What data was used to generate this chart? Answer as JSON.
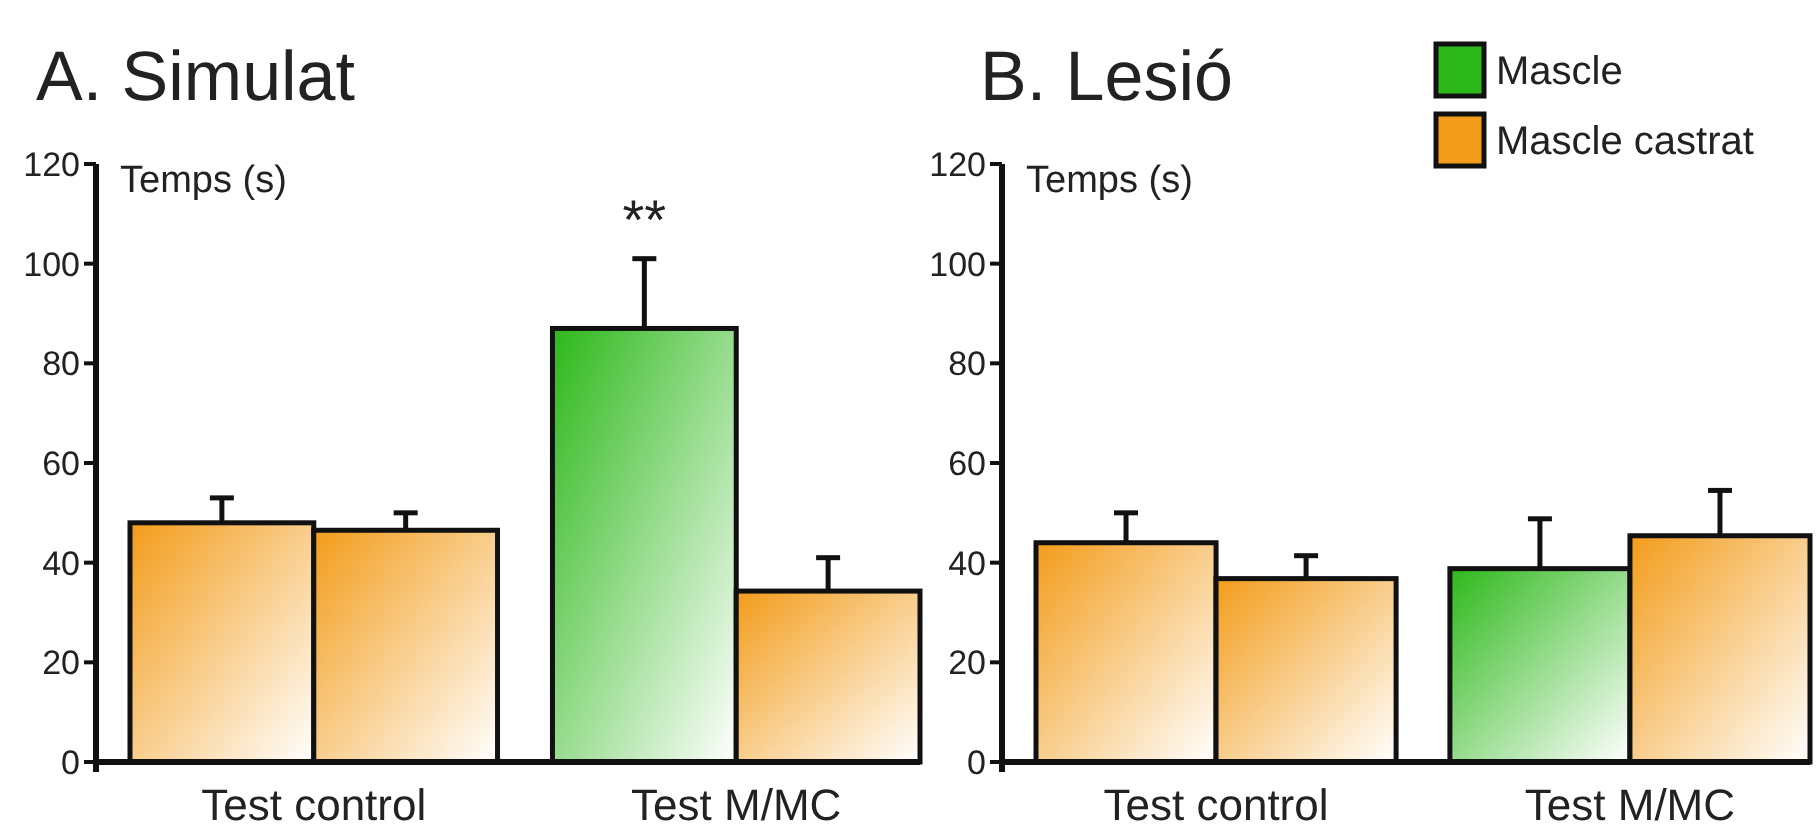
{
  "chart_data": [
    {
      "type": "bar",
      "title": "A. Simulat",
      "ylabel": "Temps (s)",
      "categories": [
        "Test control",
        "Test M/MC"
      ],
      "series": [
        {
          "color": "#2db81a",
          "colors": [
            "#f39c1a",
            "#2db81a"
          ],
          "values": [
            48,
            87
          ],
          "errors": [
            [
              48,
              53
            ],
            [
              87,
              101
            ]
          ]
        },
        {
          "color": "#f39c1a",
          "colors": [
            "#f39c1a",
            "#f39c1a"
          ],
          "values": [
            46.5,
            34.3
          ],
          "errors": [
            [
              46.5,
              50
            ],
            [
              34.3,
              41
            ]
          ]
        }
      ],
      "ylim": [
        0,
        120
      ],
      "yticks": [
        0,
        20,
        40,
        60,
        80,
        100,
        120
      ],
      "legend": false,
      "annotations": [
        "**"
      ]
    },
    {
      "type": "bar",
      "title": "B. Lesió",
      "ylabel": "Temps (s)",
      "categories": [
        "Test control",
        "Test M/MC"
      ],
      "series": [
        {
          "name": "Mascle",
          "color": "#2db81a",
          "colors": [
            "#f39c1a",
            "#2db81a"
          ],
          "values": [
            44,
            38.8
          ],
          "errors": [
            [
              44,
              50
            ],
            [
              38.8,
              48.8
            ]
          ]
        },
        {
          "name": "Mascle castrat",
          "color": "#f39c1a",
          "colors": [
            "#f39c1a",
            "#f39c1a"
          ],
          "values": [
            36.8,
            45.4
          ],
          "errors": [
            [
              36.8,
              41.4
            ],
            [
              45.4,
              54.5
            ]
          ]
        }
      ],
      "ylim": [
        0,
        120
      ],
      "yticks": [
        0,
        20,
        40,
        60,
        80,
        100,
        120
      ],
      "legend": "top right"
    }
  ]
}
